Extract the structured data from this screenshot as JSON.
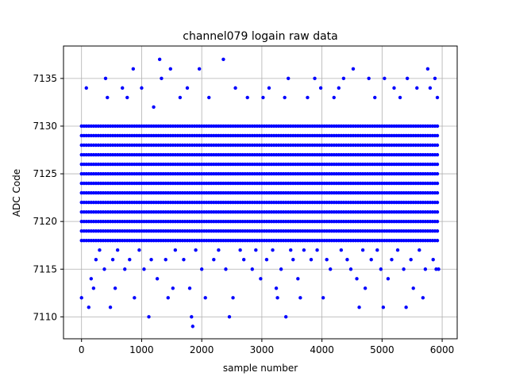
{
  "chart_data": {
    "type": "scatter",
    "title": "channel079 logain raw data",
    "xlabel": "sample number",
    "ylabel": "ADC Code",
    "xlim": [
      -300,
      6250
    ],
    "ylim": [
      7107.7,
      7138.4
    ],
    "xticks": [
      0,
      1000,
      2000,
      3000,
      4000,
      5000,
      6000
    ],
    "yticks": [
      7110,
      7115,
      7120,
      7125,
      7130,
      7135
    ],
    "grid": true,
    "marker_color": "#0000ff",
    "dense_rows": {
      "x_range": [
        0,
        5950
      ],
      "step": 40,
      "y_values": [
        7118,
        7119,
        7120,
        7121,
        7122,
        7123,
        7124,
        7125,
        7126,
        7127,
        7128,
        7129,
        7130
      ]
    },
    "series": [
      {
        "points": [
          [
            0,
            7112
          ],
          [
            80,
            7134
          ],
          [
            120,
            7111
          ],
          [
            160,
            7114
          ],
          [
            200,
            7113
          ],
          [
            240,
            7116
          ],
          [
            300,
            7117
          ],
          [
            380,
            7115
          ],
          [
            400,
            7135
          ],
          [
            430,
            7133
          ],
          [
            480,
            7111
          ],
          [
            520,
            7116
          ],
          [
            560,
            7113
          ],
          [
            600,
            7117
          ],
          [
            680,
            7134
          ],
          [
            720,
            7115
          ],
          [
            760,
            7133
          ],
          [
            800,
            7116
          ],
          [
            860,
            7136
          ],
          [
            880,
            7112
          ],
          [
            960,
            7117
          ],
          [
            1000,
            7134
          ],
          [
            1040,
            7115
          ],
          [
            1120,
            7110
          ],
          [
            1160,
            7116
          ],
          [
            1200,
            7132
          ],
          [
            1260,
            7114
          ],
          [
            1300,
            7137
          ],
          [
            1330,
            7135
          ],
          [
            1400,
            7116
          ],
          [
            1440,
            7112
          ],
          [
            1480,
            7136
          ],
          [
            1520,
            7113
          ],
          [
            1560,
            7117
          ],
          [
            1640,
            7133
          ],
          [
            1700,
            7116
          ],
          [
            1760,
            7134
          ],
          [
            1800,
            7113
          ],
          [
            1830,
            7110
          ],
          [
            1850,
            7109
          ],
          [
            1900,
            7117
          ],
          [
            1960,
            7136
          ],
          [
            2000,
            7115
          ],
          [
            2060,
            7112
          ],
          [
            2120,
            7133
          ],
          [
            2200,
            7116
          ],
          [
            2280,
            7117
          ],
          [
            2360,
            7137
          ],
          [
            2400,
            7115
          ],
          [
            2460,
            7110
          ],
          [
            2520,
            7112
          ],
          [
            2560,
            7134
          ],
          [
            2640,
            7117
          ],
          [
            2700,
            7116
          ],
          [
            2760,
            7133
          ],
          [
            2840,
            7115
          ],
          [
            2900,
            7117
          ],
          [
            2980,
            7114
          ],
          [
            3020,
            7133
          ],
          [
            3080,
            7116
          ],
          [
            3120,
            7134
          ],
          [
            3180,
            7117
          ],
          [
            3240,
            7113
          ],
          [
            3260,
            7112
          ],
          [
            3320,
            7115
          ],
          [
            3380,
            7133
          ],
          [
            3400,
            7110
          ],
          [
            3440,
            7135
          ],
          [
            3480,
            7117
          ],
          [
            3520,
            7116
          ],
          [
            3600,
            7114
          ],
          [
            3640,
            7112
          ],
          [
            3700,
            7117
          ],
          [
            3760,
            7133
          ],
          [
            3820,
            7116
          ],
          [
            3880,
            7135
          ],
          [
            3920,
            7117
          ],
          [
            3980,
            7134
          ],
          [
            4020,
            7112
          ],
          [
            4080,
            7116
          ],
          [
            4140,
            7115
          ],
          [
            4200,
            7133
          ],
          [
            4280,
            7134
          ],
          [
            4320,
            7117
          ],
          [
            4360,
            7135
          ],
          [
            4420,
            7116
          ],
          [
            4480,
            7115
          ],
          [
            4520,
            7136
          ],
          [
            4580,
            7114
          ],
          [
            4620,
            7111
          ],
          [
            4680,
            7117
          ],
          [
            4720,
            7113
          ],
          [
            4780,
            7135
          ],
          [
            4820,
            7116
          ],
          [
            4880,
            7133
          ],
          [
            4920,
            7117
          ],
          [
            4980,
            7115
          ],
          [
            5020,
            7111
          ],
          [
            5040,
            7135
          ],
          [
            5100,
            7114
          ],
          [
            5160,
            7116
          ],
          [
            5200,
            7134
          ],
          [
            5260,
            7117
          ],
          [
            5300,
            7133
          ],
          [
            5360,
            7115
          ],
          [
            5400,
            7111
          ],
          [
            5420,
            7135
          ],
          [
            5480,
            7116
          ],
          [
            5520,
            7113
          ],
          [
            5580,
            7134
          ],
          [
            5620,
            7117
          ],
          [
            5680,
            7112
          ],
          [
            5720,
            7115
          ],
          [
            5760,
            7136
          ],
          [
            5800,
            7134
          ],
          [
            5850,
            7116
          ],
          [
            5880,
            7135
          ],
          [
            5900,
            7115
          ],
          [
            5920,
            7133
          ],
          [
            5940,
            7115
          ]
        ]
      }
    ]
  }
}
